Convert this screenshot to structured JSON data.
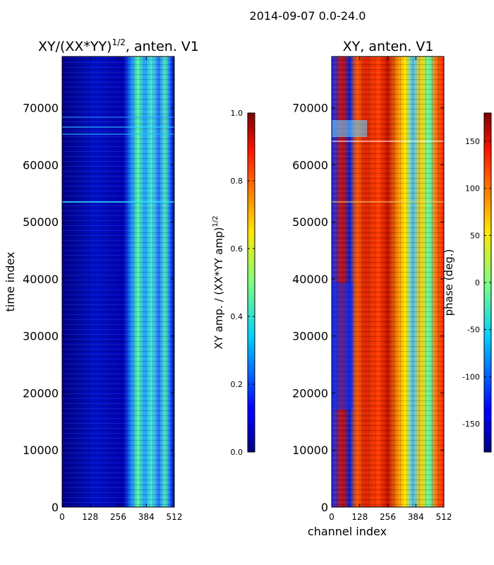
{
  "suptitle": "2014-09-07 0.0-24.0",
  "chart_data": [
    {
      "type": "heatmap",
      "title": "XY/(XX*YY)",
      "title_exponent": "1/2",
      "title_suffix": ", anten. V1",
      "xlabel": "",
      "ylabel": "time index",
      "xlim": [
        0,
        512
      ],
      "ylim": [
        0,
        79000
      ],
      "x_ticks": [
        "0",
        "128",
        "256",
        "384",
        "512"
      ],
      "y_ticks": [
        "0",
        "10000",
        "20000",
        "30000",
        "40000",
        "50000",
        "60000",
        "70000"
      ],
      "colorbar": {
        "label": "XY amp. / (XX*YY amp)",
        "label_exponent": "1/2",
        "range": [
          0.0,
          1.0
        ],
        "ticks": [
          "0.0",
          "0.2",
          "0.4",
          "0.6",
          "0.8",
          "1.0"
        ],
        "colormap": "jet"
      }
    },
    {
      "type": "heatmap",
      "title": "XY, anten. V1",
      "xlabel": "channel index",
      "ylabel": "",
      "xlim": [
        0,
        512
      ],
      "ylim": [
        0,
        79000
      ],
      "x_ticks": [
        "0",
        "128",
        "256",
        "384",
        "512"
      ],
      "y_ticks": [
        "0",
        "10000",
        "20000",
        "30000",
        "40000",
        "50000",
        "60000",
        "70000"
      ],
      "colorbar": {
        "label": "phase (deg.)",
        "range": [
          -180,
          180
        ],
        "ticks": [
          "-150",
          "-100",
          "-50",
          "0",
          "50",
          "100",
          "150"
        ],
        "colormap": "jet"
      }
    }
  ]
}
